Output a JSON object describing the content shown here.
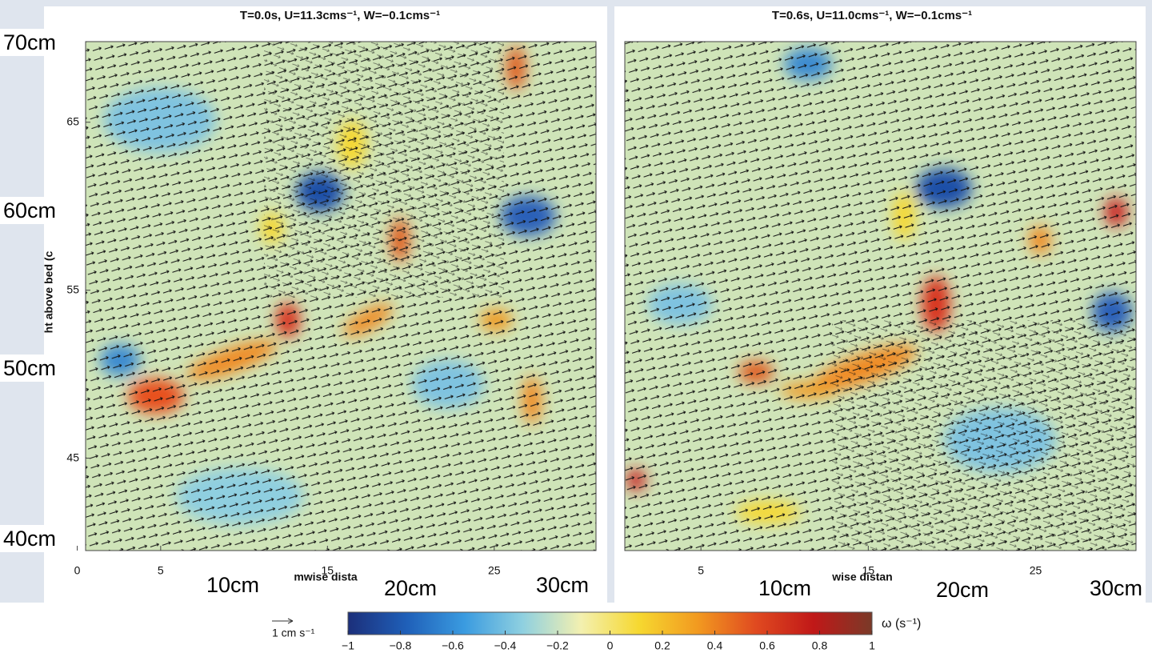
{
  "chart_data": [
    {
      "type": "vector-field",
      "title": "T=0.0s, U=11.3cms⁻¹, W=−0.1cms⁻¹",
      "ylabel": "ht above bed (c",
      "xlabel": "mwise dista",
      "xlim": [
        0.5,
        31.1
      ],
      "ylim": [
        39.5,
        69.8
      ],
      "xticks": [
        0,
        5,
        15,
        25
      ],
      "yticks": [
        45,
        55,
        65
      ]
    },
    {
      "type": "vector-field",
      "title": "T=0.6s, U=11.0cms⁻¹, W=−0.1cms⁻¹",
      "xlabel": "wise distan",
      "xlim": [
        0.45,
        31.0
      ],
      "ylim": [
        39.5,
        69.8
      ],
      "xticks": [
        5,
        15,
        25
      ],
      "yticks": []
    }
  ],
  "colorbar": {
    "label": "ω (s⁻¹)",
    "lim": [
      -1,
      1
    ],
    "colors": [
      "#1c2f7a",
      "#1f5fb8",
      "#3a9be0",
      "#8fd0e0",
      "#f3f0b0",
      "#f6d830",
      "#f29a20",
      "#e04a20",
      "#c01818",
      "#7a3a28"
    ],
    "ticks": [
      {
        "value": -1,
        "label": "−1"
      },
      {
        "value": -0.8,
        "label": "−0.8"
      },
      {
        "value": -0.6,
        "label": "−0.6"
      },
      {
        "value": -0.4,
        "label": "−0.4"
      },
      {
        "value": -0.2,
        "label": "−0.2"
      },
      0,
      0.2,
      0.4,
      0.6,
      0.8,
      1
    ]
  },
  "quiver_key": {
    "label": "1 cm s⁻¹"
  },
  "annotations": [
    "70cm",
    "60cm",
    "50cm",
    "40cm",
    "10cm",
    "20cm",
    "30cm",
    "10cm",
    "20cm",
    "30cm"
  ]
}
